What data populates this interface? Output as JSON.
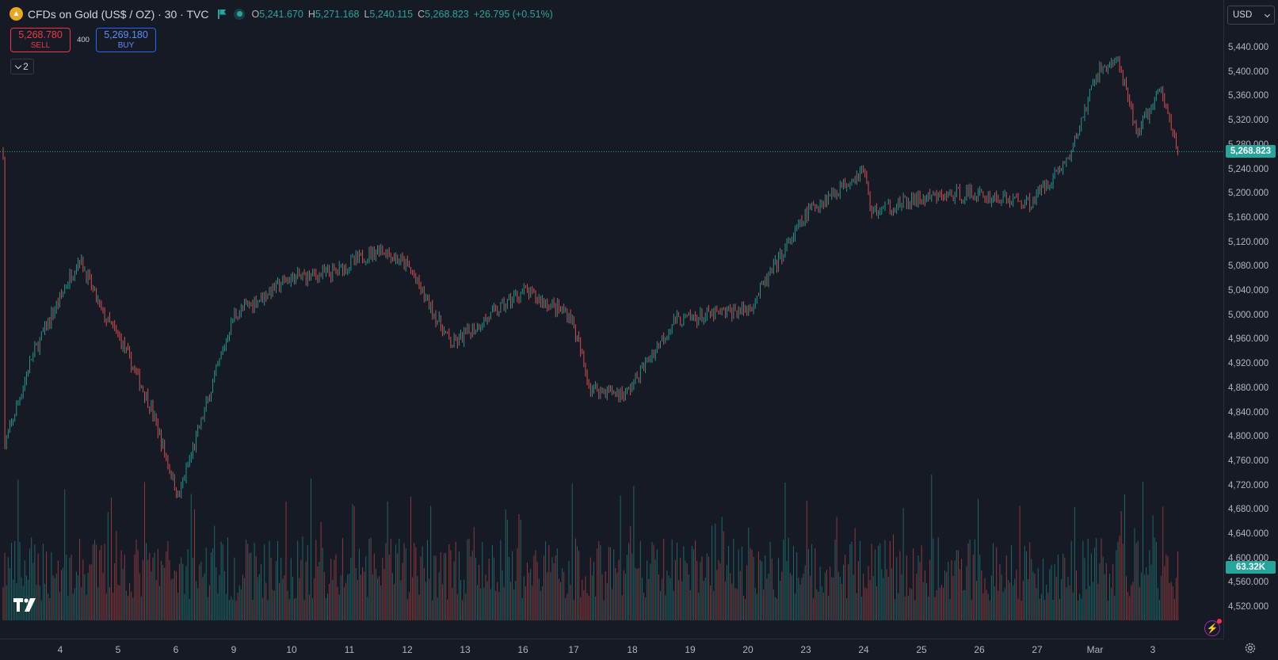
{
  "symbol": {
    "title": "CFDs on Gold (US$ / OZ) · 30 · TVC",
    "logo_icon": "gold-bars-icon",
    "accent_up": "#26a69a",
    "accent_down": "#ef5350"
  },
  "ohlc": {
    "o_key": "O",
    "o": "5,241.670",
    "h_key": "H",
    "h": "5,271.168",
    "l_key": "L",
    "l": "5,240.115",
    "c_key": "C",
    "c": "5,268.823",
    "change": "+26.795 (+0.51%)"
  },
  "trade": {
    "sell_price": "5,268.780",
    "sell_label": "SELL",
    "spread": "400",
    "buy_price": "5,269.180",
    "buy_label": "BUY"
  },
  "indicators_toggle": {
    "count": "2"
  },
  "currency": {
    "selected": "USD"
  },
  "badges": {
    "last_price": "5,268.823",
    "volume": "63.32K"
  },
  "price_axis": {
    "labels": [
      "5,440.000",
      "5,400.000",
      "5,360.000",
      "5,320.000",
      "5,280.000",
      "5,240.000",
      "5,200.000",
      "5,160.000",
      "5,120.000",
      "5,080.000",
      "5,040.000",
      "5,000.000",
      "4,960.000",
      "4,920.000",
      "4,880.000",
      "4,840.000",
      "4,800.000",
      "4,760.000",
      "4,720.000",
      "4,680.000",
      "4,640.000",
      "4,600.000",
      "4,560.000",
      "4,520.000"
    ]
  },
  "time_axis": {
    "labels": [
      "4",
      "5",
      "6",
      "9",
      "10",
      "11",
      "12",
      "13",
      "16",
      "17",
      "18",
      "19",
      "20",
      "23",
      "24",
      "25",
      "26",
      "27",
      "Mar",
      "3"
    ]
  },
  "chart_data": {
    "type": "candlestick",
    "interval": "30",
    "price_scale": {
      "min": 4500,
      "max": 5460
    },
    "last_price": 5268.823,
    "price_path": [
      {
        "x": "4",
        "y": 4780
      },
      {
        "x": "4",
        "y": 4930
      },
      {
        "x": "4",
        "y": 5095
      },
      {
        "x": "5",
        "y": 5000
      },
      {
        "x": "5",
        "y": 4960
      },
      {
        "x": "6",
        "y": 4850
      },
      {
        "x": "6",
        "y": 4700
      },
      {
        "x": "9",
        "y": 5000
      },
      {
        "x": "10",
        "y": 5060
      },
      {
        "x": "11",
        "y": 5070
      },
      {
        "x": "12",
        "y": 5110
      },
      {
        "x": "12",
        "y": 5080
      },
      {
        "x": "13",
        "y": 4950
      },
      {
        "x": "16",
        "y": 5040
      },
      {
        "x": "17",
        "y": 5000
      },
      {
        "x": "17",
        "y": 4880
      },
      {
        "x": "18",
        "y": 4870
      },
      {
        "x": "19",
        "y": 4990
      },
      {
        "x": "20",
        "y": 5010
      },
      {
        "x": "23",
        "y": 5170
      },
      {
        "x": "24",
        "y": 5240
      },
      {
        "x": "24",
        "y": 5170
      },
      {
        "x": "25",
        "y": 5190
      },
      {
        "x": "26",
        "y": 5200
      },
      {
        "x": "27",
        "y": 5185
      },
      {
        "x": "27",
        "y": 5260
      },
      {
        "x": "Mar",
        "y": 5400
      },
      {
        "x": "Mar",
        "y": 5420
      },
      {
        "x": "3",
        "y": 5300
      },
      {
        "x": "3",
        "y": 5370
      },
      {
        "x": "3",
        "y": 5268.823
      }
    ]
  }
}
